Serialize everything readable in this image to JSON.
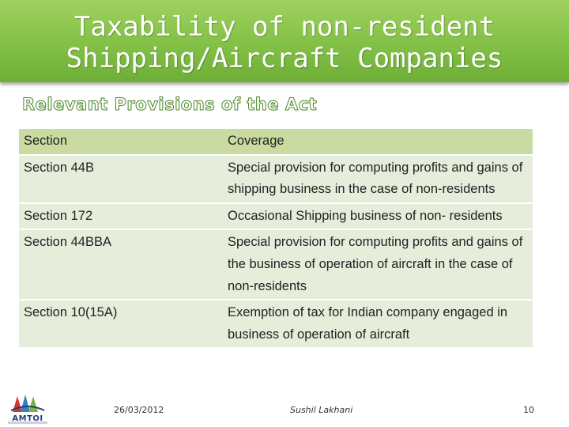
{
  "slide": {
    "title_line1": "Taxability of non-resident",
    "title_line2": "Shipping/Aircraft Companies",
    "subtitle": "Relevant Provisions of the Act"
  },
  "table": {
    "headers": [
      "Section",
      "Coverage"
    ],
    "rows": [
      {
        "section": "Section 44B",
        "coverage": "Special provision for computing profits and gains of shipping business in the case of non-residents"
      },
      {
        "section": "Section 172",
        "coverage": "Occasional Shipping business of non- residents"
      },
      {
        "section": "Section 44BBA",
        "coverage": "Special provision for computing profits and gains of the business of operation of aircraft in the case of non-residents"
      },
      {
        "section": "Section 10(15A)",
        "coverage": "Exemption of tax for Indian company engaged in business of operation of aircraft"
      }
    ]
  },
  "footer": {
    "date": "26/03/2012",
    "author": "Sushil Lakhani",
    "page": "10",
    "logo_text": "AMTOI"
  },
  "colors": {
    "title_band": "#82c046",
    "table_header": "#c9dba1",
    "table_row": "#e7eddb",
    "subtitle_outline": "#4f8a2b"
  }
}
